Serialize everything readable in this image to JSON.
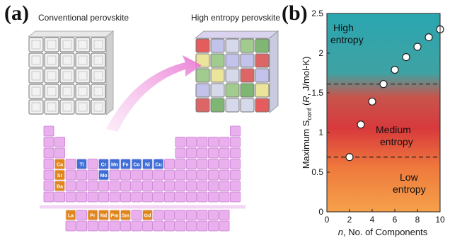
{
  "panel_a": {
    "label": "(a)",
    "left_title": "Conventional perovskite",
    "right_title": "High entropy perovskite",
    "elements_orange_col": [
      "Ca",
      "Sr",
      "Ba"
    ],
    "elements_blue": [
      "Ti",
      "Cr",
      "Mn",
      "Fe",
      "Co",
      "Ni",
      "Cu",
      "Mo"
    ],
    "elements_lanthanides": [
      "La",
      "Pr",
      "Nd",
      "Pm",
      "Sm",
      "Gd"
    ],
    "colors": {
      "table_pink": "#e9a6ec",
      "element_blue": "#3f6fd6",
      "element_orange": "#e0861a",
      "arrow_pink": "#f08ad8"
    }
  },
  "panel_b": {
    "label": "(b)"
  },
  "chart_data": {
    "type": "scatter",
    "x": [
      2,
      3,
      4,
      5,
      6,
      7,
      8,
      9,
      10
    ],
    "y": [
      0.69,
      1.1,
      1.39,
      1.61,
      1.79,
      1.95,
      2.08,
      2.2,
      2.3
    ],
    "xlabel_italic": "n",
    "xlabel_rest": ", No. of Components",
    "ylabel": "Maximum S_conf (R, J/mol-K)",
    "ylabel_main": "Maximum S",
    "ylabel_sub": "conf",
    "ylabel_open": " (",
    "ylabel_italic": "R",
    "ylabel_rest": ", J/mol-K)",
    "xlim": [
      0,
      10
    ],
    "ylim": [
      0,
      2.5
    ],
    "xticks": [
      "0",
      "2",
      "4",
      "6",
      "8",
      "10"
    ],
    "yticks": [
      "0",
      "0.5",
      "1",
      "1.5",
      "2",
      "2.5"
    ],
    "thresholds": [
      0.69,
      1.61
    ],
    "regions": {
      "high": [
        "High",
        "entropy"
      ],
      "medium": [
        "Medium",
        "entropy"
      ],
      "low": [
        "Low",
        "entropy"
      ]
    },
    "gradient_colors": [
      "#2aa6b0",
      "#d8393c",
      "#f5a14a"
    ]
  }
}
